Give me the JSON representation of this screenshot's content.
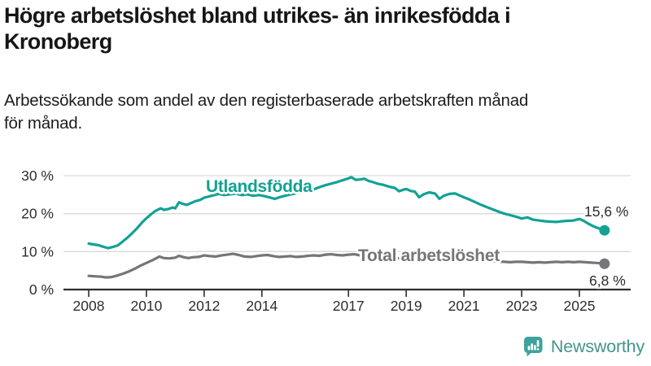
{
  "header": {
    "title_line1": "Högre arbetslöshet bland utrikes- än inrikesfödda i",
    "title_line2": "Kronoberg",
    "subtitle_line1": "Arbetssökande som andel av den registerbaserade arbetskraften månad",
    "subtitle_line2": "för månad."
  },
  "chart_data": {
    "type": "line",
    "x_unit": "year (monthly observations)",
    "grid": "horizontal",
    "legend_position": "inline-labels-on-lines",
    "x_axis": {
      "ticks": [
        {
          "year": 2008,
          "label": "2008"
        },
        {
          "year": 2010,
          "label": "2010"
        },
        {
          "year": 2012,
          "label": "2012"
        },
        {
          "year": 2014,
          "label": "2014"
        },
        {
          "year": 2017,
          "label": "2017"
        },
        {
          "year": 2019,
          "label": "2019"
        },
        {
          "year": 2021,
          "label": "2021"
        },
        {
          "year": 2023,
          "label": "2023"
        },
        {
          "year": 2025,
          "label": "2025"
        }
      ],
      "range": [
        2007.1,
        2026.7
      ]
    },
    "y_axis": {
      "ticks": [
        {
          "value": 0,
          "label": "0 %"
        },
        {
          "value": 10,
          "label": "10 %"
        },
        {
          "value": 20,
          "label": "20 %"
        },
        {
          "value": 30,
          "label": "30 %"
        }
      ],
      "range": [
        0,
        32
      ]
    },
    "series": [
      {
        "name": "Utlandsfödda",
        "color": "#12a294",
        "end_value_label": "15,6 %",
        "end_value": 15.6,
        "points": [
          [
            2008.0,
            12.1
          ],
          [
            2008.17,
            11.9
          ],
          [
            2008.33,
            11.7
          ],
          [
            2008.5,
            11.3
          ],
          [
            2008.67,
            10.9
          ],
          [
            2008.83,
            11.2
          ],
          [
            2009.0,
            11.6
          ],
          [
            2009.17,
            12.6
          ],
          [
            2009.33,
            13.6
          ],
          [
            2009.5,
            14.8
          ],
          [
            2009.67,
            16.1
          ],
          [
            2009.83,
            17.5
          ],
          [
            2010.0,
            18.8
          ],
          [
            2010.17,
            19.9
          ],
          [
            2010.33,
            20.8
          ],
          [
            2010.5,
            21.4
          ],
          [
            2010.6,
            21.0
          ],
          [
            2010.75,
            21.2
          ],
          [
            2010.9,
            21.6
          ],
          [
            2011.0,
            21.4
          ],
          [
            2011.13,
            23.0
          ],
          [
            2011.25,
            22.6
          ],
          [
            2011.4,
            22.3
          ],
          [
            2011.55,
            22.8
          ],
          [
            2011.7,
            23.3
          ],
          [
            2011.85,
            23.6
          ],
          [
            2012.0,
            24.2
          ],
          [
            2012.15,
            24.5
          ],
          [
            2012.3,
            24.8
          ],
          [
            2012.5,
            25.2
          ],
          [
            2012.7,
            24.9
          ],
          [
            2012.9,
            25.1
          ],
          [
            2013.1,
            25.3
          ],
          [
            2013.3,
            24.9
          ],
          [
            2013.5,
            25.1
          ],
          [
            2013.7,
            24.7
          ],
          [
            2013.9,
            24.9
          ],
          [
            2014.1,
            24.6
          ],
          [
            2014.3,
            24.2
          ],
          [
            2014.45,
            23.9
          ],
          [
            2014.6,
            24.3
          ],
          [
            2014.8,
            24.7
          ],
          [
            2015.0,
            25.1
          ],
          [
            2015.2,
            25.4
          ],
          [
            2015.4,
            25.7
          ],
          [
            2015.6,
            26.0
          ],
          [
            2015.8,
            26.4
          ],
          [
            2016.0,
            27.0
          ],
          [
            2016.2,
            27.5
          ],
          [
            2016.4,
            27.9
          ],
          [
            2016.6,
            28.3
          ],
          [
            2016.8,
            28.8
          ],
          [
            2017.0,
            29.3
          ],
          [
            2017.1,
            29.6
          ],
          [
            2017.25,
            28.9
          ],
          [
            2017.4,
            29.0
          ],
          [
            2017.55,
            29.2
          ],
          [
            2017.7,
            28.6
          ],
          [
            2017.85,
            28.3
          ],
          [
            2018.0,
            27.9
          ],
          [
            2018.2,
            27.6
          ],
          [
            2018.4,
            27.1
          ],
          [
            2018.6,
            26.8
          ],
          [
            2018.75,
            25.9
          ],
          [
            2018.9,
            26.3
          ],
          [
            2019.0,
            26.5
          ],
          [
            2019.15,
            26.0
          ],
          [
            2019.3,
            25.8
          ],
          [
            2019.45,
            24.3
          ],
          [
            2019.6,
            25.1
          ],
          [
            2019.8,
            25.6
          ],
          [
            2020.0,
            25.3
          ],
          [
            2020.15,
            23.9
          ],
          [
            2020.3,
            24.7
          ],
          [
            2020.5,
            25.2
          ],
          [
            2020.7,
            25.3
          ],
          [
            2020.85,
            24.8
          ],
          [
            2021.0,
            24.3
          ],
          [
            2021.2,
            23.7
          ],
          [
            2021.4,
            23.0
          ],
          [
            2021.6,
            22.3
          ],
          [
            2021.8,
            21.7
          ],
          [
            2022.0,
            21.1
          ],
          [
            2022.2,
            20.5
          ],
          [
            2022.4,
            20.0
          ],
          [
            2022.6,
            19.6
          ],
          [
            2022.8,
            19.2
          ],
          [
            2023.0,
            18.7
          ],
          [
            2023.2,
            19.0
          ],
          [
            2023.4,
            18.4
          ],
          [
            2023.6,
            18.2
          ],
          [
            2023.8,
            18.0
          ],
          [
            2024.0,
            17.9
          ],
          [
            2024.2,
            17.8
          ],
          [
            2024.4,
            18.0
          ],
          [
            2024.6,
            18.1
          ],
          [
            2024.8,
            18.2
          ],
          [
            2025.0,
            18.6
          ],
          [
            2025.15,
            18.1
          ],
          [
            2025.3,
            17.4
          ],
          [
            2025.45,
            16.8
          ],
          [
            2025.6,
            16.3
          ],
          [
            2025.75,
            15.9
          ],
          [
            2025.87,
            15.6
          ]
        ]
      },
      {
        "name": "Total arbetslöshet",
        "color": "#76757a",
        "end_value_label": "6,8 %",
        "end_value": 6.8,
        "points": [
          [
            2008.0,
            3.6
          ],
          [
            2008.2,
            3.5
          ],
          [
            2008.4,
            3.4
          ],
          [
            2008.6,
            3.2
          ],
          [
            2008.8,
            3.3
          ],
          [
            2009.0,
            3.7
          ],
          [
            2009.2,
            4.2
          ],
          [
            2009.4,
            4.8
          ],
          [
            2009.6,
            5.5
          ],
          [
            2009.8,
            6.3
          ],
          [
            2010.0,
            7.0
          ],
          [
            2010.2,
            7.7
          ],
          [
            2010.35,
            8.3
          ],
          [
            2010.45,
            8.7
          ],
          [
            2010.6,
            8.3
          ],
          [
            2010.8,
            8.2
          ],
          [
            2011.0,
            8.4
          ],
          [
            2011.13,
            8.9
          ],
          [
            2011.3,
            8.5
          ],
          [
            2011.45,
            8.3
          ],
          [
            2011.6,
            8.5
          ],
          [
            2011.8,
            8.6
          ],
          [
            2012.0,
            9.0
          ],
          [
            2012.2,
            8.8
          ],
          [
            2012.4,
            8.7
          ],
          [
            2012.6,
            9.0
          ],
          [
            2012.8,
            9.2
          ],
          [
            2013.0,
            9.4
          ],
          [
            2013.2,
            9.1
          ],
          [
            2013.4,
            8.7
          ],
          [
            2013.6,
            8.6
          ],
          [
            2013.8,
            8.8
          ],
          [
            2014.0,
            9.0
          ],
          [
            2014.2,
            9.1
          ],
          [
            2014.4,
            8.8
          ],
          [
            2014.6,
            8.6
          ],
          [
            2014.8,
            8.7
          ],
          [
            2015.0,
            8.8
          ],
          [
            2015.2,
            8.6
          ],
          [
            2015.4,
            8.7
          ],
          [
            2015.6,
            8.9
          ],
          [
            2015.8,
            9.0
          ],
          [
            2016.0,
            8.9
          ],
          [
            2016.2,
            9.2
          ],
          [
            2016.4,
            9.3
          ],
          [
            2016.6,
            9.1
          ],
          [
            2016.8,
            9.0
          ],
          [
            2017.0,
            9.2
          ],
          [
            2017.2,
            9.3
          ],
          [
            2017.4,
            9.0
          ],
          [
            2017.6,
            8.9
          ],
          [
            2017.8,
            8.7
          ],
          [
            2018.0,
            8.6
          ],
          [
            2018.2,
            8.4
          ],
          [
            2018.4,
            8.5
          ],
          [
            2018.6,
            8.3
          ],
          [
            2018.8,
            8.2
          ],
          [
            2019.0,
            8.1
          ],
          [
            2019.2,
            8.0
          ],
          [
            2019.4,
            7.8
          ],
          [
            2019.6,
            7.9
          ],
          [
            2019.8,
            8.0
          ],
          [
            2020.0,
            8.1
          ],
          [
            2020.2,
            8.5
          ],
          [
            2020.4,
            8.9
          ],
          [
            2020.6,
            9.0
          ],
          [
            2020.8,
            8.8
          ],
          [
            2021.0,
            8.6
          ],
          [
            2021.2,
            8.3
          ],
          [
            2021.4,
            8.0
          ],
          [
            2021.6,
            7.8
          ],
          [
            2021.8,
            7.6
          ],
          [
            2022.0,
            7.5
          ],
          [
            2022.2,
            7.4
          ],
          [
            2022.4,
            7.3
          ],
          [
            2022.6,
            7.2
          ],
          [
            2022.8,
            7.3
          ],
          [
            2023.0,
            7.3
          ],
          [
            2023.2,
            7.2
          ],
          [
            2023.4,
            7.1
          ],
          [
            2023.6,
            7.2
          ],
          [
            2023.8,
            7.1
          ],
          [
            2024.0,
            7.2
          ],
          [
            2024.2,
            7.3
          ],
          [
            2024.4,
            7.2
          ],
          [
            2024.6,
            7.3
          ],
          [
            2024.8,
            7.2
          ],
          [
            2025.0,
            7.3
          ],
          [
            2025.2,
            7.2
          ],
          [
            2025.4,
            7.1
          ],
          [
            2025.6,
            7.0
          ],
          [
            2025.75,
            6.9
          ],
          [
            2025.87,
            6.8
          ]
        ]
      }
    ],
    "colors": {
      "gridline": "#d9d9d9",
      "axis": "#2d2d2d",
      "tick_label": "#2d2d2d"
    }
  },
  "branding": {
    "logo_text": "Newsworthy",
    "logo_icon": "bar-chart-speech-bubble-icon",
    "logo_icon_color": "#3da29b",
    "logo_text_color": "#45938e"
  }
}
